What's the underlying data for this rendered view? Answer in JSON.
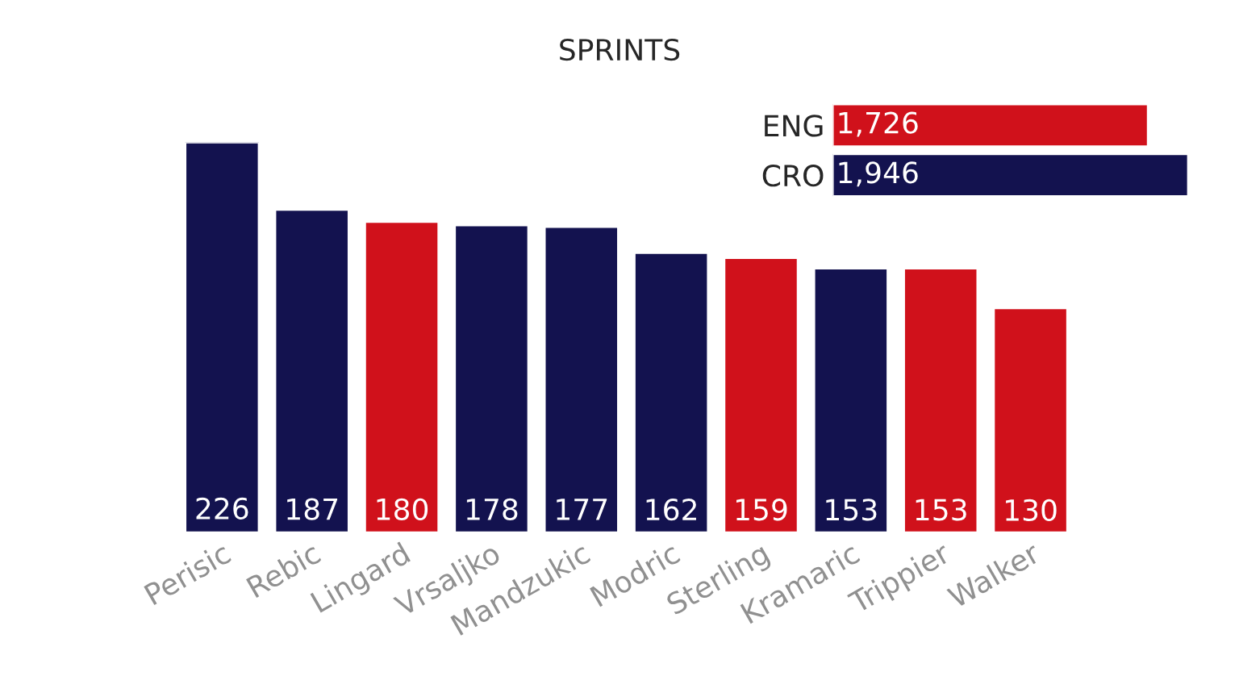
{
  "chart_data": [
    {
      "type": "bar",
      "title": "SPRINTS",
      "categories": [
        "Perisic",
        "Rebic",
        "Lingard",
        "Vrsaljko",
        "Mandzukic",
        "Modric",
        "Sterling",
        "Kramaric",
        "Trippier",
        "Walker"
      ],
      "values": [
        226,
        187,
        180,
        178,
        177,
        162,
        159,
        153,
        153,
        130
      ],
      "colors": [
        "#13124f",
        "#13124f",
        "#d0111b",
        "#13124f",
        "#13124f",
        "#13124f",
        "#d0111b",
        "#13124f",
        "#d0111b",
        "#d0111b"
      ],
      "data_labels": true,
      "tick_labels": "x"
    },
    {
      "type": "bar",
      "orientation": "horizontal",
      "categories": [
        "ENG",
        "CRO"
      ],
      "values": [
        1726,
        1946
      ],
      "colors": [
        "#d0111b",
        "#13124f"
      ],
      "value_labels": [
        "1,726",
        "1,946"
      ],
      "tick_labels": "y"
    }
  ]
}
